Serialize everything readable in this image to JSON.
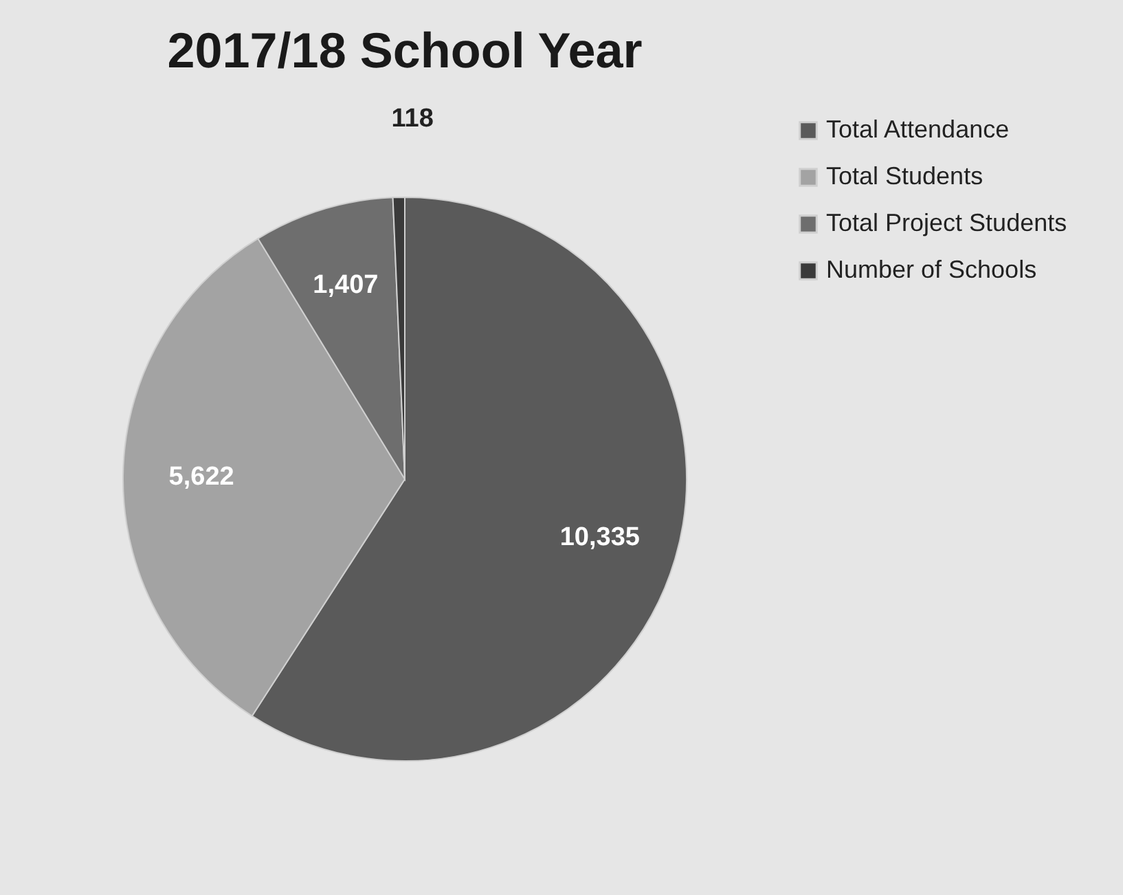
{
  "chart_data": {
    "type": "pie",
    "title": "2017/18 School Year",
    "categories": [
      "Total Attendance",
      "Total Students",
      "Total Project Students",
      "Number of Schools"
    ],
    "values": [
      10335,
      5622,
      1407,
      118
    ],
    "colors": [
      "#5a5a5a",
      "#a3a3a3",
      "#6e6e6e",
      "#3a3a3a"
    ],
    "value_labels": [
      "10,335",
      "5,622",
      "1,407",
      "118"
    ],
    "legend": "right"
  }
}
